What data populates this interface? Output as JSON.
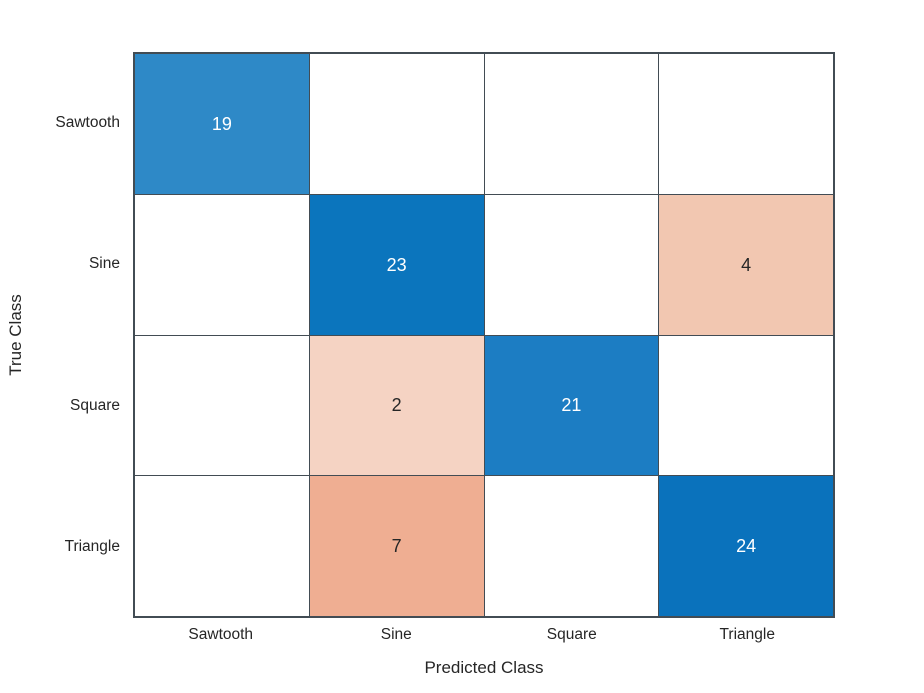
{
  "chart_data": {
    "type": "heatmap",
    "variant": "confusion-matrix",
    "title": "",
    "xlabel": "Predicted Class",
    "ylabel": "True Class",
    "classes": [
      "Sawtooth",
      "Sine",
      "Square",
      "Triangle"
    ],
    "x_tick_labels": [
      "Sawtooth",
      "Sine",
      "Square",
      "Triangle"
    ],
    "y_tick_labels": [
      "Sawtooth",
      "Sine",
      "Square",
      "Triangle"
    ],
    "matrix": [
      [
        19,
        0,
        0,
        0
      ],
      [
        0,
        23,
        0,
        4
      ],
      [
        0,
        2,
        21,
        0
      ],
      [
        0,
        7,
        0,
        24
      ]
    ],
    "hide_zero_cells": true,
    "cell_bg_colors": [
      [
        "#2e89c7",
        "#ffffff",
        "#ffffff",
        "#ffffff"
      ],
      [
        "#ffffff",
        "#0b75bd",
        "#ffffff",
        "#f2c7b1"
      ],
      [
        "#ffffff",
        "#f5d3c3",
        "#1c7dc3",
        "#ffffff"
      ],
      [
        "#ffffff",
        "#efae92",
        "#ffffff",
        "#0a72bc"
      ]
    ],
    "cell_text_colors": [
      [
        "#ffffff",
        null,
        null,
        null
      ],
      [
        null,
        "#ffffff",
        null,
        "#262626"
      ],
      [
        null,
        "#262626",
        "#ffffff",
        null
      ],
      [
        null,
        "#262626",
        null,
        "#ffffff"
      ]
    ],
    "grid_color": "#424c54",
    "tick_label_color": "#262626",
    "axis_label_color": "#262626",
    "legend": "none"
  }
}
